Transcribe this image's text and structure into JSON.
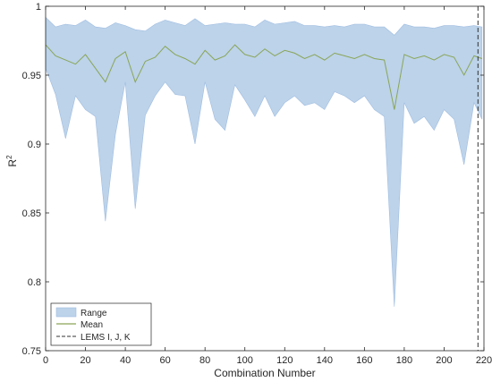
{
  "chart_data": {
    "type": "area",
    "title": "",
    "xlabel": "Combination Number",
    "ylabel": "R",
    "ylabel_superscript": "2",
    "xlim": [
      0,
      220
    ],
    "ylim": [
      0.75,
      1.0
    ],
    "xticks": [
      0,
      20,
      40,
      60,
      80,
      100,
      120,
      140,
      160,
      180,
      200,
      220
    ],
    "yticks": [
      0.75,
      0.8,
      0.85,
      0.9,
      0.95,
      1
    ],
    "ytick_labels": [
      "0.75",
      "0.8",
      "0.85",
      "0.9",
      "0.95",
      "1"
    ],
    "grid": false,
    "legend_position": "bottom-left",
    "series": [
      {
        "name": "Range",
        "kind": "band",
        "color": "#bcd3ea",
        "x": [
          0,
          5,
          10,
          15,
          20,
          25,
          30,
          35,
          40,
          45,
          50,
          55,
          60,
          65,
          70,
          75,
          80,
          85,
          90,
          95,
          100,
          105,
          110,
          115,
          120,
          125,
          130,
          135,
          140,
          145,
          150,
          155,
          160,
          165,
          170,
          175,
          180,
          185,
          190,
          195,
          200,
          205,
          210,
          215,
          219
        ],
        "upper": [
          0.992,
          0.985,
          0.987,
          0.986,
          0.99,
          0.985,
          0.984,
          0.988,
          0.986,
          0.983,
          0.982,
          0.987,
          0.99,
          0.988,
          0.986,
          0.991,
          0.986,
          0.987,
          0.988,
          0.987,
          0.987,
          0.985,
          0.99,
          0.987,
          0.988,
          0.989,
          0.986,
          0.986,
          0.985,
          0.986,
          0.985,
          0.987,
          0.987,
          0.985,
          0.985,
          0.979,
          0.987,
          0.985,
          0.985,
          0.984,
          0.986,
          0.986,
          0.985,
          0.986,
          0.985
        ],
        "lower": [
          0.955,
          0.936,
          0.904,
          0.935,
          0.925,
          0.92,
          0.844,
          0.907,
          0.945,
          0.853,
          0.921,
          0.935,
          0.945,
          0.936,
          0.935,
          0.9,
          0.945,
          0.918,
          0.91,
          0.943,
          0.932,
          0.92,
          0.935,
          0.92,
          0.93,
          0.935,
          0.928,
          0.93,
          0.925,
          0.938,
          0.935,
          0.93,
          0.935,
          0.925,
          0.92,
          0.782,
          0.93,
          0.915,
          0.92,
          0.91,
          0.925,
          0.918,
          0.885,
          0.93,
          0.918
        ]
      },
      {
        "name": "Mean",
        "kind": "line",
        "color": "#8aa557",
        "x": [
          0,
          5,
          10,
          15,
          20,
          25,
          30,
          35,
          40,
          45,
          50,
          55,
          60,
          65,
          70,
          75,
          80,
          85,
          90,
          95,
          100,
          105,
          110,
          115,
          120,
          125,
          130,
          135,
          140,
          145,
          150,
          155,
          160,
          165,
          170,
          175,
          180,
          185,
          190,
          195,
          200,
          205,
          210,
          215,
          219
        ],
        "values": [
          0.972,
          0.964,
          0.961,
          0.958,
          0.965,
          0.955,
          0.945,
          0.962,
          0.967,
          0.945,
          0.96,
          0.963,
          0.971,
          0.965,
          0.962,
          0.958,
          0.968,
          0.961,
          0.964,
          0.972,
          0.965,
          0.963,
          0.969,
          0.964,
          0.968,
          0.966,
          0.962,
          0.965,
          0.961,
          0.966,
          0.964,
          0.962,
          0.965,
          0.962,
          0.961,
          0.925,
          0.965,
          0.962,
          0.964,
          0.961,
          0.965,
          0.963,
          0.95,
          0.964,
          0.962
        ]
      },
      {
        "name": "LEMS I, J, K",
        "kind": "vline",
        "color": "#333333",
        "x": 217
      }
    ]
  }
}
